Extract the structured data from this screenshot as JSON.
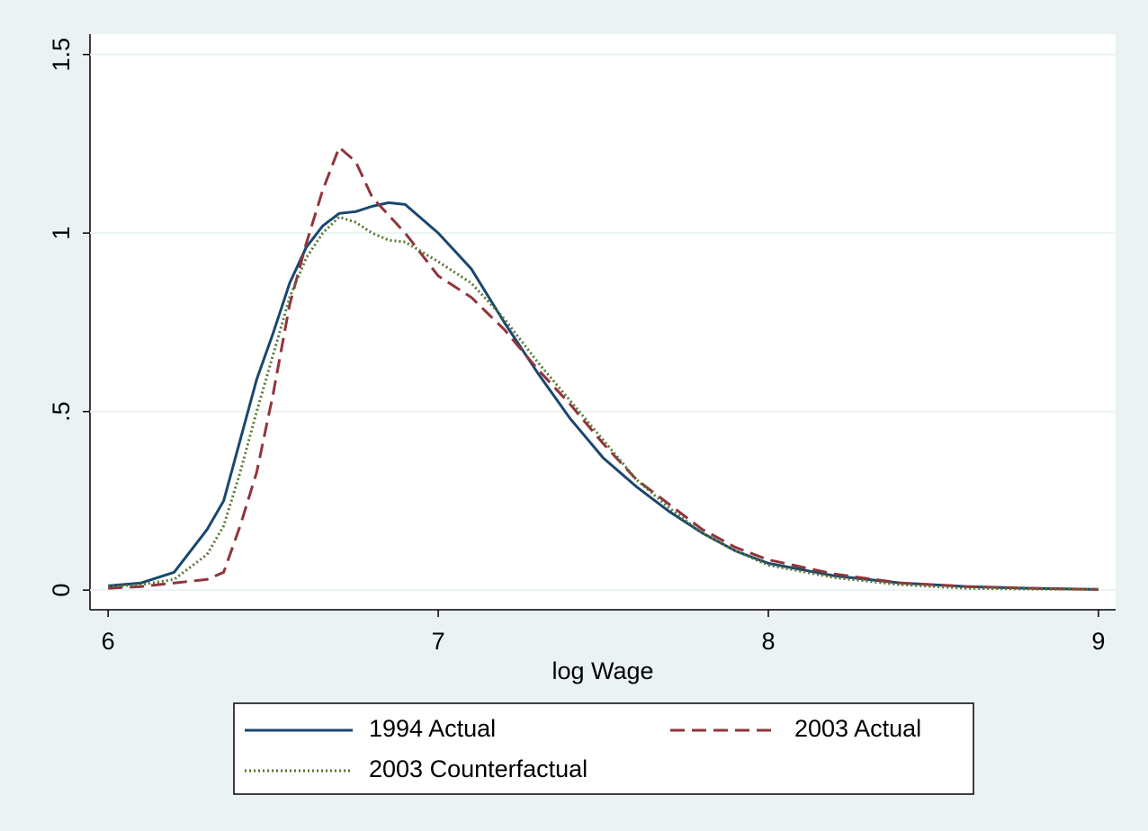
{
  "chart_data": {
    "type": "line",
    "xlabel": "log Wage",
    "x": [
      6.0,
      6.1,
      6.2,
      6.3,
      6.35,
      6.4,
      6.45,
      6.5,
      6.55,
      6.6,
      6.65,
      6.7,
      6.75,
      6.8,
      6.85,
      6.9,
      7.0,
      7.1,
      7.2,
      7.3,
      7.4,
      7.5,
      7.6,
      7.7,
      7.8,
      7.9,
      8.0,
      8.2,
      8.4,
      8.6,
      8.8,
      9.0
    ],
    "series": [
      {
        "name": "1994 Actual",
        "color": "#1a476f",
        "style": "solid",
        "values": [
          0.012,
          0.02,
          0.05,
          0.17,
          0.25,
          0.42,
          0.59,
          0.72,
          0.86,
          0.96,
          1.02,
          1.055,
          1.06,
          1.075,
          1.085,
          1.08,
          1.0,
          0.9,
          0.75,
          0.61,
          0.48,
          0.37,
          0.29,
          0.22,
          0.16,
          0.11,
          0.075,
          0.04,
          0.02,
          0.01,
          0.005,
          0.002
        ]
      },
      {
        "name": "2003 Actual",
        "color": "#90353b",
        "style": "dashed",
        "values": [
          0.005,
          0.01,
          0.02,
          0.03,
          0.05,
          0.18,
          0.33,
          0.55,
          0.8,
          0.97,
          1.12,
          1.24,
          1.2,
          1.1,
          1.05,
          1.0,
          0.88,
          0.82,
          0.73,
          0.62,
          0.52,
          0.41,
          0.31,
          0.24,
          0.17,
          0.12,
          0.085,
          0.045,
          0.02,
          0.01,
          0.005,
          0.002
        ]
      },
      {
        "name": "2003 Counterfactual",
        "color": "#55752f",
        "style": "dotted",
        "values": [
          0.01,
          0.015,
          0.03,
          0.1,
          0.18,
          0.33,
          0.5,
          0.66,
          0.82,
          0.93,
          1.0,
          1.045,
          1.03,
          1.0,
          0.98,
          0.975,
          0.92,
          0.86,
          0.76,
          0.64,
          0.53,
          0.42,
          0.31,
          0.23,
          0.16,
          0.11,
          0.07,
          0.035,
          0.015,
          0.005,
          0.003,
          0.002
        ]
      }
    ],
    "xlim": [
      5.945,
      9.052
    ],
    "xticks": [
      6,
      7,
      8,
      9
    ],
    "ylim": [
      -0.055,
      1.557
    ],
    "yticks": [
      0,
      {
        "value": 0.5,
        "label": ".5"
      },
      1,
      1.5
    ],
    "grid": true,
    "legend": "bottom"
  }
}
